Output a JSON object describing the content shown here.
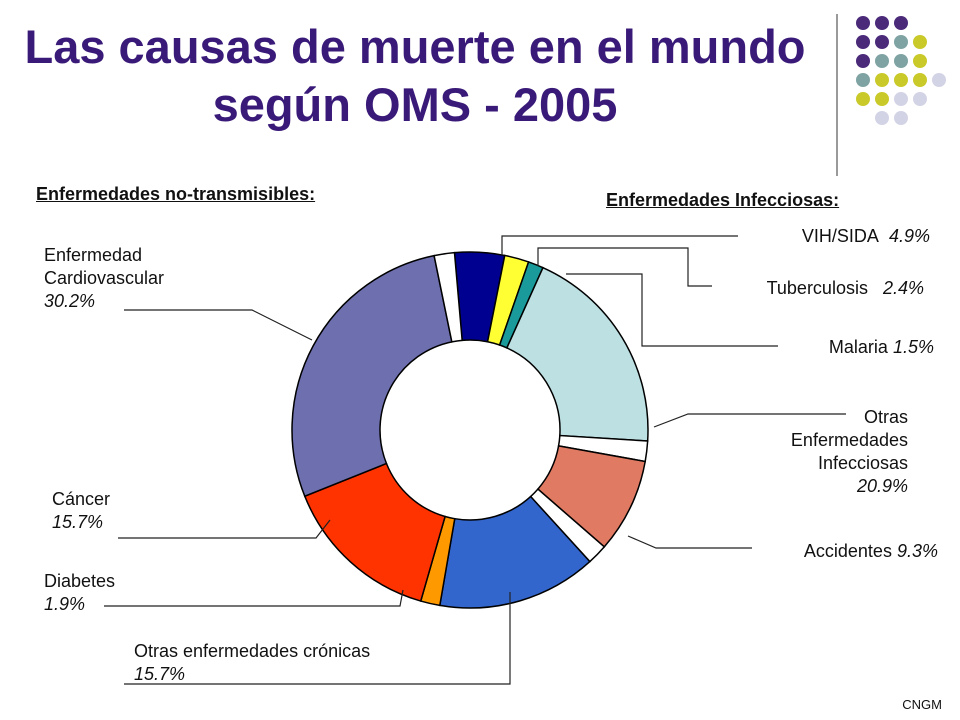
{
  "title": "Las causas de muerte en el mundo según OMS - 2005",
  "sections": {
    "noncommunicable": "Enfermedades no-transmisibles:",
    "infectious": "Enfermedades Infecciosas:"
  },
  "footer": "CNGM",
  "chart_data": {
    "type": "pie",
    "donut": true,
    "slices": [
      {
        "name": "VIH/SIDA",
        "value": 4.9,
        "color": "#000090"
      },
      {
        "name": "Tuberculosis",
        "value": 2.4,
        "color": "#ffff33"
      },
      {
        "name": "Malaria",
        "value": 1.5,
        "color": "#1a9a9a"
      },
      {
        "name": "Otras Enfermedades Infecciosas",
        "value": 20.9,
        "color": "#bde0e3"
      },
      {
        "name": "",
        "value": 2.0,
        "color": "#ffffff"
      },
      {
        "name": "Accidentes",
        "value": 9.3,
        "color": "#e07a63"
      },
      {
        "name": "",
        "value": 2.0,
        "color": "#ffffff"
      },
      {
        "name": "Otras enfermedades crónicas",
        "value": 15.7,
        "color": "#3366cc"
      },
      {
        "name": "Diabetes",
        "value": 1.9,
        "color": "#ff9900"
      },
      {
        "name": "Cáncer",
        "value": 15.7,
        "color": "#ff3300"
      },
      {
        "name": "Enfermedad Cardiovascular",
        "value": 30.2,
        "color": "#6d6fae"
      },
      {
        "name": "",
        "value": 2.0,
        "color": "#ffffff"
      }
    ],
    "labels": {
      "vih": {
        "name": "VIH/SIDA",
        "pct": "4.9%"
      },
      "tb": {
        "name": "Tuberculosis",
        "pct": "2.4%"
      },
      "malaria": {
        "name": "Malaria",
        "pct": "1.5%"
      },
      "otras_inf": {
        "name_1": "Otras",
        "name_2": "Enfermedades",
        "name_3": "Infecciosas",
        "pct": "20.9%"
      },
      "accidentes": {
        "name": "Accidentes",
        "pct": "9.3%"
      },
      "cardio": {
        "name_1": "Enfermedad",
        "name_2": "Cardiovascular",
        "pct": "30.2%"
      },
      "cancer": {
        "name": "Cáncer",
        "pct": "15.7%"
      },
      "diabetes": {
        "name": "Diabetes",
        "pct": "1.9%"
      },
      "cronicas": {
        "name": "Otras enfermedades crónicas",
        "pct": "15.7%"
      }
    }
  }
}
